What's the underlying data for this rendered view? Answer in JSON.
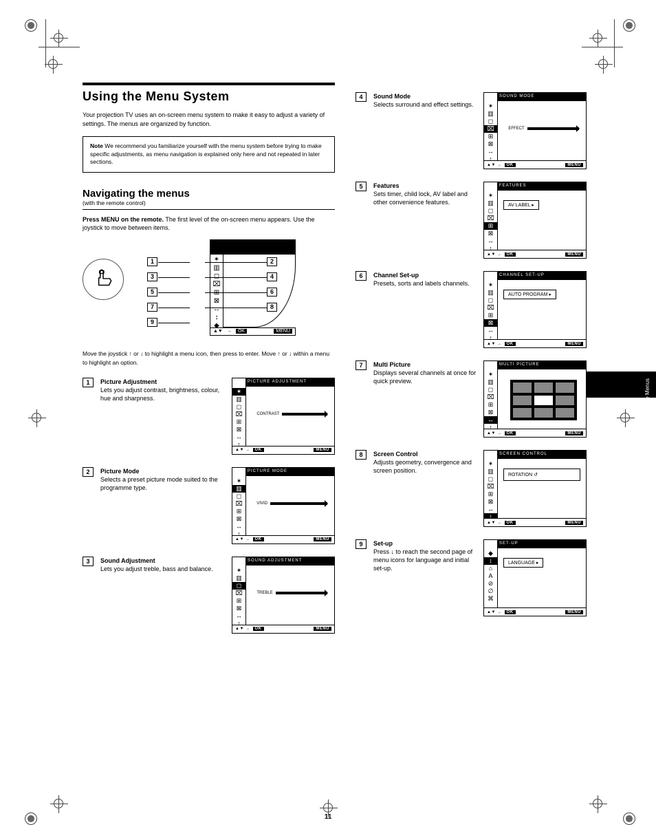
{
  "page_number": "11",
  "black_tab_label": "Using the Menus",
  "headline": "Using the Menu System",
  "intro": "Your projection TV uses an on-screen menu system to make it easy to adjust a variety of settings. The menus are organized by function.",
  "note": {
    "title": "Note",
    "body": "We recommend you familiarize yourself with the menu system before trying to make specific adjustments, as menu navigation is explained only here and not repeated in later sections."
  },
  "subhead": {
    "big": "Navigating the menus",
    "small": "(with the remote control)"
  },
  "para1_bold": "Press MENU on the remote.",
  "para1_rest": " The first level of the on-screen menu appears. Use the joystick to move between items.",
  "diagram_numbers": [
    "1",
    "2",
    "3",
    "4",
    "5",
    "6",
    "7",
    "8",
    "9"
  ],
  "icon_glyphs": [
    "✶",
    "▥",
    "◻",
    "⌧",
    "⊞",
    "⊠",
    "↔",
    "↕",
    "◆"
  ],
  "footbar": {
    "nav": "▲▼",
    "sep": "→",
    "ok": "OK",
    "menu": "MENU"
  },
  "legend": "Move the joystick ↑ or ↓ to highlight a menu icon, then press  to enter. Move ↑ or ↓ within a menu to highlight an option.",
  "left_steps": [
    {
      "n": "1",
      "title": "Picture Adjustment",
      "body": "Lets you adjust contrast, brightness, colour, hue and sharpness.",
      "screen": {
        "header": "PICTURE ADJUSTMENT",
        "type": "slider",
        "slider_label": "CONTRAST",
        "hl": 0
      }
    },
    {
      "n": "2",
      "title": "Picture Mode",
      "body": "Selects a preset picture mode suited to the programme type.",
      "screen": {
        "header": "PICTURE MODE",
        "type": "slider",
        "slider_label": "VIVID",
        "hl": 1
      }
    },
    {
      "n": "3",
      "title": "Sound Adjustment",
      "body": "Lets you adjust treble, bass and balance.",
      "screen": {
        "header": "SOUND ADJUSTMENT",
        "type": "slider",
        "slider_label": "TREBLE",
        "hl": 2
      }
    }
  ],
  "right_steps": [
    {
      "n": "4",
      "title": "Sound Mode",
      "body": "Selects surround and effect settings.",
      "screen": {
        "header": "SOUND MODE",
        "type": "slider",
        "slider_label": "EFFECT",
        "hl": 3
      }
    },
    {
      "n": "5",
      "title": "Features",
      "body": "Sets timer, child lock, AV label and other convenience features.",
      "screen": {
        "header": "FEATURES",
        "type": "opt",
        "opt_label": "AV LABEL  ▸",
        "hl": 4
      }
    },
    {
      "n": "6",
      "title": "Channel Set-up",
      "body": "Presets, sorts and labels channels.",
      "screen": {
        "header": "CHANNEL SET-UP",
        "type": "opt",
        "opt_label": "AUTO PROGRAM  ▸",
        "hl": 5
      }
    },
    {
      "n": "7",
      "title": "Multi Picture",
      "body": "Displays several channels at once for quick preview.",
      "screen": {
        "header": "MULTI PICTURE",
        "type": "pip",
        "hl": 6
      }
    },
    {
      "n": "8",
      "title": "Screen Control",
      "body": "Adjusts geometry, convergence and screen position.",
      "screen": {
        "header": "SCREEN CONTROL",
        "type": "rot",
        "rot_label": "ROTATION   ↺",
        "hl": 7
      }
    },
    {
      "n": "9",
      "title": "Set-up",
      "body": "Press ↓ to reach the second page of menu icons for language and initial set-up.",
      "screen": {
        "header": "SET-UP",
        "type": "opt",
        "opt_label": "LANGUAGE  ▸",
        "alt_side": true,
        "hl": 1
      }
    }
  ],
  "alt_side_glyphs": [
    "◆",
    "↕",
    "⌂",
    "A",
    "⊘",
    "∅",
    "⌘"
  ],
  "colors": {
    "ink": "#000000",
    "paper": "#ffffff",
    "grey": "#888888"
  }
}
